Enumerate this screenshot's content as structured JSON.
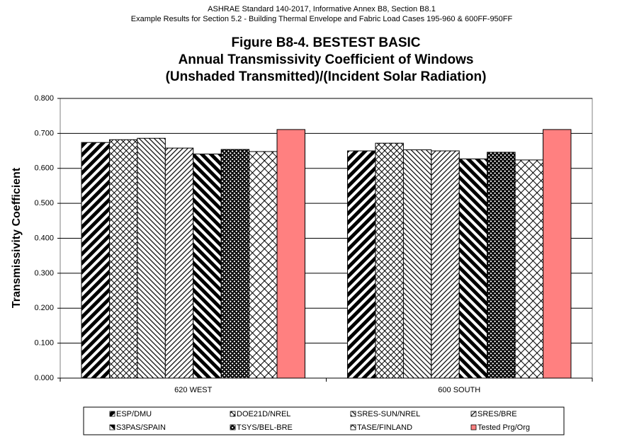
{
  "chart_data": {
    "type": "bar",
    "header": [
      "ASHRAE Standard 140-2017, Informative Annex B8, Section B8.1",
      "Example Results for Section 5.2 - Building Thermal Envelope and Fabric Load Cases 195-960 & 600FF-950FF"
    ],
    "title": [
      "Figure B8-4.  BESTEST BASIC",
      "Annual Transmissivity Coefficient of Windows",
      "(Unshaded Transmitted)/(Incident Solar Radiation)"
    ],
    "y_label": "Transmissivity Coefficient",
    "categories": [
      "620 WEST",
      "600 SOUTH"
    ],
    "ylim": [
      0,
      0.8
    ],
    "yticks": [
      {
        "value": 0,
        "label": "0.000"
      },
      {
        "value": 0.1,
        "label": "0.100"
      },
      {
        "value": 0.2,
        "label": "0.200"
      },
      {
        "value": 0.3,
        "label": "0.300"
      },
      {
        "value": 0.4,
        "label": "0.400"
      },
      {
        "value": 0.5,
        "label": "0.500"
      },
      {
        "value": 0.6,
        "label": "0.600"
      },
      {
        "value": 0.7,
        "label": "0.700"
      },
      {
        "value": 0.8,
        "label": "0.800"
      }
    ],
    "grid": true,
    "legend": "bottom",
    "series": [
      {
        "name": "ESP/DMU",
        "color": "#000000",
        "pattern": "wide-up",
        "values": [
          0.674,
          0.65
        ]
      },
      {
        "name": "DOE21D/NREL",
        "color": "#000000",
        "pattern": "cross-fine",
        "values": [
          0.682,
          0.672
        ]
      },
      {
        "name": "SRES-SUN/NREL",
        "color": "#000000",
        "pattern": "thin-down",
        "values": [
          0.686,
          0.653
        ]
      },
      {
        "name": "SRES/BRE",
        "color": "#000000",
        "pattern": "thin-up",
        "values": [
          0.658,
          0.65
        ]
      },
      {
        "name": "S3PAS/SPAIN",
        "color": "#000000",
        "pattern": "wide-down",
        "values": [
          0.641,
          0.627
        ]
      },
      {
        "name": "TSYS/BEL-BRE",
        "color": "#000000",
        "pattern": "cross-dense",
        "values": [
          0.654,
          0.646
        ]
      },
      {
        "name": "TASE/FINLAND",
        "color": "#000000",
        "pattern": "cross-sparse",
        "values": [
          0.648,
          0.624
        ]
      },
      {
        "name": "Tested Prg/Org",
        "color": "#ff8080",
        "pattern": "solid",
        "values": [
          0.711,
          0.711
        ]
      }
    ]
  }
}
